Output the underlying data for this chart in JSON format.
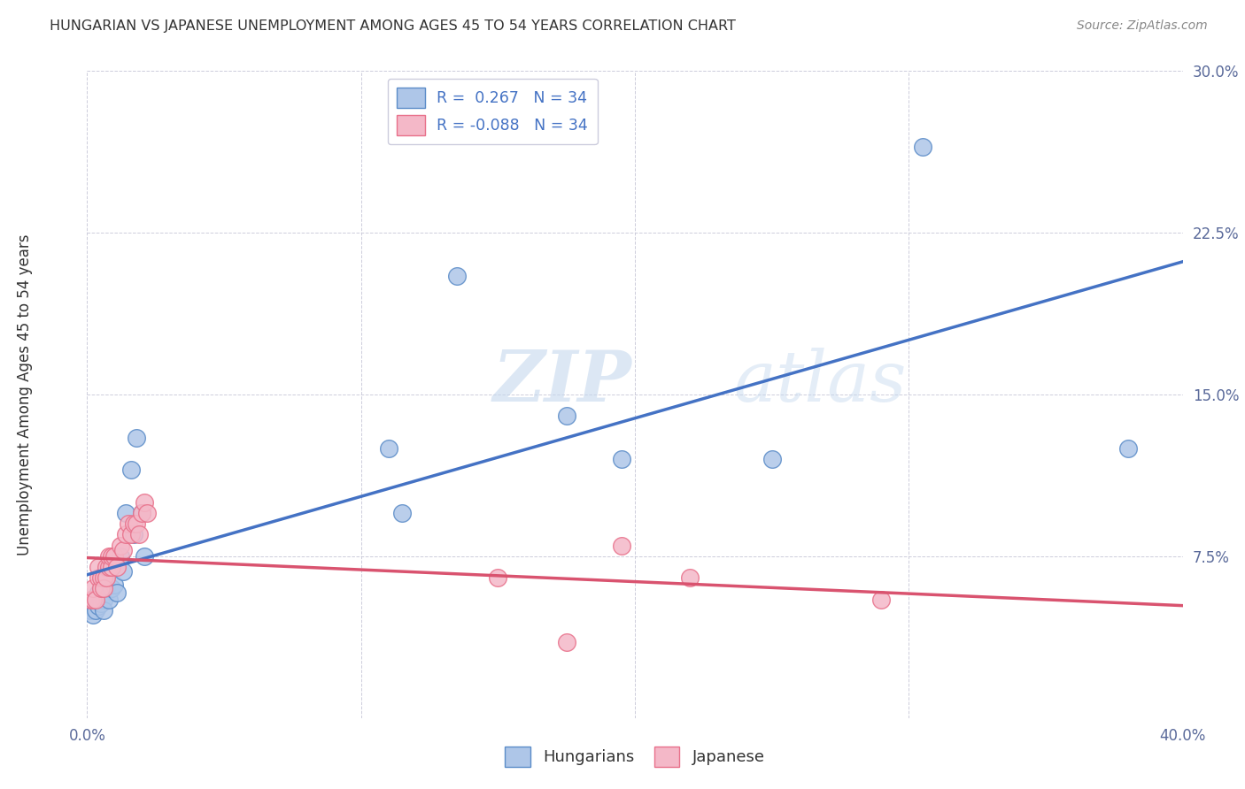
{
  "title": "HUNGARIAN VS JAPANESE UNEMPLOYMENT AMONG AGES 45 TO 54 YEARS CORRELATION CHART",
  "source": "Source: ZipAtlas.com",
  "ylabel": "Unemployment Among Ages 45 to 54 years",
  "xlim": [
    0.0,
    0.4
  ],
  "ylim": [
    0.0,
    0.3
  ],
  "xticks": [
    0.0,
    0.1,
    0.2,
    0.3,
    0.4
  ],
  "yticks": [
    0.0,
    0.075,
    0.15,
    0.225,
    0.3
  ],
  "xtick_labels": [
    "0.0%",
    "",
    "",
    "",
    "40.0%"
  ],
  "ytick_labels": [
    "",
    "7.5%",
    "15.0%",
    "22.5%",
    "30.0%"
  ],
  "hun_R": "0.267",
  "jap_R": "-0.088",
  "N": "34",
  "hun_color": "#aec6e8",
  "jap_color": "#f4b8c8",
  "hun_edge_color": "#5b8cc8",
  "jap_edge_color": "#e8708a",
  "hun_line_color": "#4472c4",
  "jap_line_color": "#d9536f",
  "watermark_zip": "ZIP",
  "watermark_atlas": "atlas",
  "hun_x": [
    0.001,
    0.002,
    0.002,
    0.003,
    0.003,
    0.004,
    0.004,
    0.005,
    0.005,
    0.006,
    0.006,
    0.007,
    0.007,
    0.008,
    0.008,
    0.009,
    0.01,
    0.011,
    0.012,
    0.013,
    0.014,
    0.016,
    0.017,
    0.018,
    0.02,
    0.021,
    0.11,
    0.115,
    0.135,
    0.175,
    0.195,
    0.25,
    0.305,
    0.38
  ],
  "hun_y": [
    0.05,
    0.048,
    0.055,
    0.05,
    0.055,
    0.052,
    0.058,
    0.053,
    0.06,
    0.055,
    0.05,
    0.06,
    0.065,
    0.055,
    0.068,
    0.06,
    0.062,
    0.058,
    0.075,
    0.068,
    0.095,
    0.115,
    0.085,
    0.13,
    0.095,
    0.075,
    0.125,
    0.095,
    0.205,
    0.14,
    0.12,
    0.12,
    0.265,
    0.125
  ],
  "jap_x": [
    0.001,
    0.002,
    0.002,
    0.003,
    0.004,
    0.004,
    0.005,
    0.005,
    0.006,
    0.006,
    0.007,
    0.007,
    0.008,
    0.008,
    0.009,
    0.009,
    0.01,
    0.011,
    0.012,
    0.013,
    0.014,
    0.015,
    0.016,
    0.017,
    0.018,
    0.019,
    0.02,
    0.021,
    0.022,
    0.15,
    0.175,
    0.195,
    0.22,
    0.29
  ],
  "jap_y": [
    0.055,
    0.055,
    0.06,
    0.055,
    0.065,
    0.07,
    0.06,
    0.065,
    0.065,
    0.06,
    0.07,
    0.065,
    0.07,
    0.075,
    0.07,
    0.075,
    0.075,
    0.07,
    0.08,
    0.078,
    0.085,
    0.09,
    0.085,
    0.09,
    0.09,
    0.085,
    0.095,
    0.1,
    0.095,
    0.065,
    0.035,
    0.08,
    0.065,
    0.055
  ]
}
